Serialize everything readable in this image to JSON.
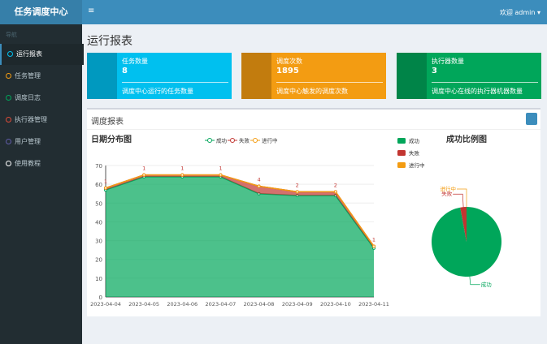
{
  "header": {
    "brand": "任务调度中心",
    "menu_icon": "≡",
    "user": "欢迎 admin ▾"
  },
  "sidebar": {
    "label": "导航",
    "items": [
      "运行报表",
      "任务管理",
      "调度日志",
      "执行器管理",
      "用户管理",
      "使用教程"
    ]
  },
  "page_title": "运行报表",
  "info_boxes": [
    {
      "title": "任务数量",
      "value": 8,
      "description": "调度中心运行的任务数量"
    },
    {
      "title": "调度次数",
      "value": 1895,
      "description": "调度中心触发的调度次数"
    },
    {
      "title": "执行器数量",
      "value": 3,
      "description": "调度中心在线的执行器机器数量"
    }
  ],
  "panel": {
    "title": "调度报表"
  },
  "chart_data": [
    {
      "type": "line",
      "stacked": true,
      "area": true,
      "title": "日期分布图",
      "categories": [
        "2023-04-04",
        "2023-04-05",
        "2023-04-06",
        "2023-04-07",
        "2023-04-08",
        "2023-04-09",
        "2023-04-10",
        "2023-04-11"
      ],
      "series": [
        {
          "name": "成功",
          "color": "#00a65a",
          "values": [
            57,
            64,
            64,
            64,
            55,
            54,
            54,
            26
          ]
        },
        {
          "name": "失败",
          "color": "#c23531",
          "values": [
            1,
            1,
            1,
            1,
            4,
            2,
            2,
            1
          ],
          "show_labels": true
        },
        {
          "name": "进行中",
          "color": "#f39c12",
          "values": [
            0,
            0,
            0,
            0,
            0,
            0,
            0,
            0
          ]
        }
      ],
      "ylim": [
        0,
        70
      ],
      "yticks": [
        0,
        10,
        20,
        30,
        40,
        50,
        60,
        70
      ],
      "grid": true
    },
    {
      "type": "pie",
      "title": "成功比例图",
      "categories": [
        "成功",
        "失败",
        "进行中"
      ],
      "values": [
        438,
        13,
        0
      ],
      "colors": [
        "#00a65a",
        "#c23531",
        "#f39c12"
      ]
    }
  ]
}
